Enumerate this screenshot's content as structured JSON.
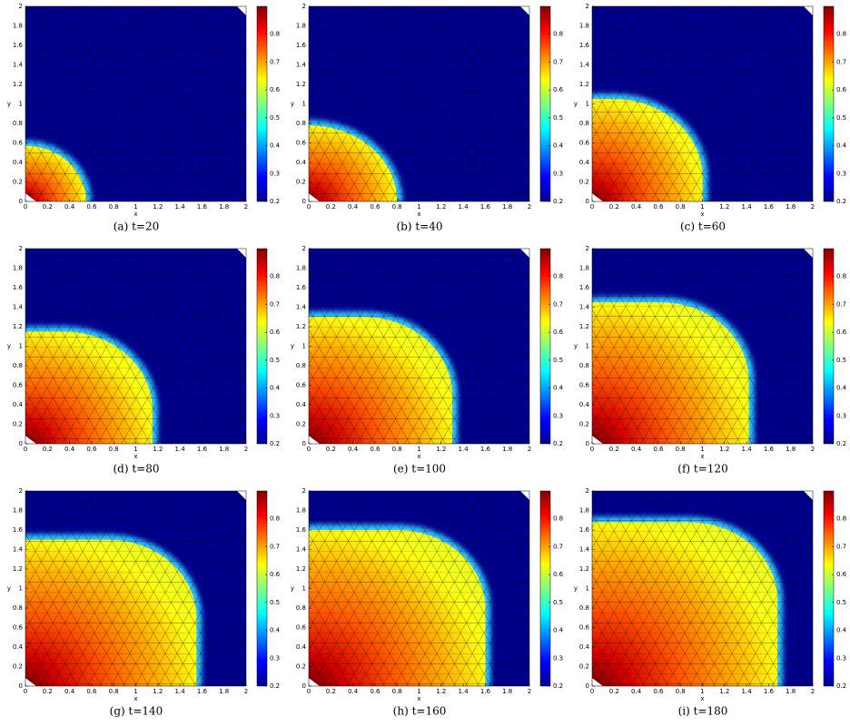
{
  "chart_data": [
    {
      "type": "heatmap",
      "caption": "(a) t=20",
      "xlabel": "x",
      "ylabel": "y",
      "xlim": [
        0,
        2
      ],
      "ylim": [
        0,
        2
      ],
      "xticks": [
        0,
        0.2,
        0.4,
        0.6,
        0.8,
        1,
        1.2,
        1.4,
        1.6,
        1.8,
        2
      ],
      "yticks": [
        0,
        0.2,
        0.4,
        0.6,
        0.8,
        1,
        1.2,
        1.4,
        1.6,
        1.8,
        2
      ],
      "clim": [
        0.2,
        0.9
      ],
      "cticks": [
        0.2,
        0.3,
        0.4,
        0.5,
        0.6,
        0.7,
        0.8
      ],
      "extent": [
        0.55,
        0.57
      ]
    },
    {
      "type": "heatmap",
      "caption": "(b) t=40",
      "xlabel": "x",
      "ylabel": "y",
      "xlim": [
        0,
        2
      ],
      "ylim": [
        0,
        2
      ],
      "xticks": [
        0,
        0.2,
        0.4,
        0.6,
        0.8,
        1,
        1.2,
        1.4,
        1.6,
        1.8,
        2
      ],
      "yticks": [
        0,
        0.2,
        0.4,
        0.6,
        0.8,
        1,
        1.2,
        1.4,
        1.6,
        1.8,
        2
      ],
      "clim": [
        0.2,
        0.9
      ],
      "cticks": [
        0.2,
        0.3,
        0.4,
        0.5,
        0.6,
        0.7,
        0.8
      ],
      "extent": [
        0.8,
        0.78
      ]
    },
    {
      "type": "heatmap",
      "caption": "(c) t=60",
      "xlabel": "x",
      "ylabel": "y",
      "xlim": [
        0,
        2
      ],
      "ylim": [
        0,
        2
      ],
      "xticks": [
        0,
        0.2,
        0.4,
        0.6,
        0.8,
        1,
        1.2,
        1.4,
        1.6,
        1.8,
        2
      ],
      "yticks": [
        0,
        0.2,
        0.4,
        0.6,
        0.8,
        1,
        1.2,
        1.4,
        1.6,
        1.8,
        2
      ],
      "clim": [
        0.2,
        0.9
      ],
      "cticks": [
        0.2,
        0.3,
        0.4,
        0.5,
        0.6,
        0.7,
        0.8
      ],
      "extent": [
        1.0,
        1.05
      ]
    },
    {
      "type": "heatmap",
      "caption": "(d) t=80",
      "xlabel": "x",
      "ylabel": "y",
      "xlim": [
        0,
        2
      ],
      "ylim": [
        0,
        2
      ],
      "xticks": [
        0,
        0.2,
        0.4,
        0.6,
        0.8,
        1,
        1.2,
        1.4,
        1.6,
        1.8,
        2
      ],
      "yticks": [
        0,
        0.2,
        0.4,
        0.6,
        0.8,
        1,
        1.2,
        1.4,
        1.6,
        1.8,
        2
      ],
      "clim": [
        0.2,
        0.9
      ],
      "cticks": [
        0.2,
        0.3,
        0.4,
        0.5,
        0.6,
        0.7,
        0.8
      ],
      "extent": [
        1.15,
        1.15
      ]
    },
    {
      "type": "heatmap",
      "caption": "(e) t=100",
      "xlabel": "x",
      "ylabel": "y",
      "xlim": [
        0,
        2
      ],
      "ylim": [
        0,
        2
      ],
      "xticks": [
        0,
        0.2,
        0.4,
        0.6,
        0.8,
        1,
        1.2,
        1.4,
        1.6,
        1.8,
        2
      ],
      "yticks": [
        0,
        0.2,
        0.4,
        0.6,
        0.8,
        1,
        1.2,
        1.4,
        1.6,
        1.8,
        2
      ],
      "clim": [
        0.2,
        0.9
      ],
      "cticks": [
        0.2,
        0.3,
        0.4,
        0.5,
        0.6,
        0.7,
        0.8
      ],
      "extent": [
        1.3,
        1.3
      ]
    },
    {
      "type": "heatmap",
      "caption": "(f) t=120",
      "xlabel": "x",
      "ylabel": "y",
      "xlim": [
        0,
        2
      ],
      "ylim": [
        0,
        2
      ],
      "xticks": [
        0,
        0.2,
        0.4,
        0.6,
        0.8,
        1,
        1.2,
        1.4,
        1.6,
        1.8,
        2
      ],
      "yticks": [
        0,
        0.2,
        0.4,
        0.6,
        0.8,
        1,
        1.2,
        1.4,
        1.6,
        1.8,
        2
      ],
      "clim": [
        0.2,
        0.9
      ],
      "cticks": [
        0.2,
        0.3,
        0.4,
        0.5,
        0.6,
        0.7,
        0.8
      ],
      "extent": [
        1.42,
        1.45
      ]
    },
    {
      "type": "heatmap",
      "caption": "(g) t=140",
      "xlabel": "x",
      "ylabel": "y",
      "xlim": [
        0,
        2
      ],
      "ylim": [
        0,
        2
      ],
      "xticks": [
        0,
        0.2,
        0.4,
        0.6,
        0.8,
        1,
        1.2,
        1.4,
        1.6,
        1.8,
        2
      ],
      "yticks": [
        0,
        0.2,
        0.4,
        0.6,
        0.8,
        1,
        1.2,
        1.4,
        1.6,
        1.8,
        2
      ],
      "clim": [
        0.2,
        0.9
      ],
      "cticks": [
        0.2,
        0.3,
        0.4,
        0.5,
        0.6,
        0.7,
        0.8
      ],
      "extent": [
        1.55,
        1.5
      ]
    },
    {
      "type": "heatmap",
      "caption": "(h) t=160",
      "xlabel": "x",
      "ylabel": "y",
      "xlim": [
        0,
        2
      ],
      "ylim": [
        0,
        2
      ],
      "xticks": [
        0,
        0.2,
        0.4,
        0.6,
        0.8,
        1,
        1.2,
        1.4,
        1.6,
        1.8,
        2
      ],
      "yticks": [
        0,
        0.2,
        0.4,
        0.6,
        0.8,
        1,
        1.2,
        1.4,
        1.6,
        1.8,
        2
      ],
      "clim": [
        0.2,
        0.9
      ],
      "cticks": [
        0.2,
        0.3,
        0.4,
        0.5,
        0.6,
        0.7,
        0.8
      ],
      "extent": [
        1.6,
        1.6
      ]
    },
    {
      "type": "heatmap",
      "caption": "(i) t=180",
      "xlabel": "x",
      "ylabel": "y",
      "xlim": [
        0,
        2
      ],
      "ylim": [
        0,
        2
      ],
      "xticks": [
        0,
        0.2,
        0.4,
        0.6,
        0.8,
        1,
        1.2,
        1.4,
        1.6,
        1.8,
        2
      ],
      "yticks": [
        0,
        0.2,
        0.4,
        0.6,
        0.8,
        1,
        1.2,
        1.4,
        1.6,
        1.8,
        2
      ],
      "clim": [
        0.2,
        0.9
      ],
      "cticks": [
        0.2,
        0.3,
        0.4,
        0.5,
        0.6,
        0.7,
        0.8
      ],
      "extent": [
        1.68,
        1.68
      ]
    }
  ]
}
